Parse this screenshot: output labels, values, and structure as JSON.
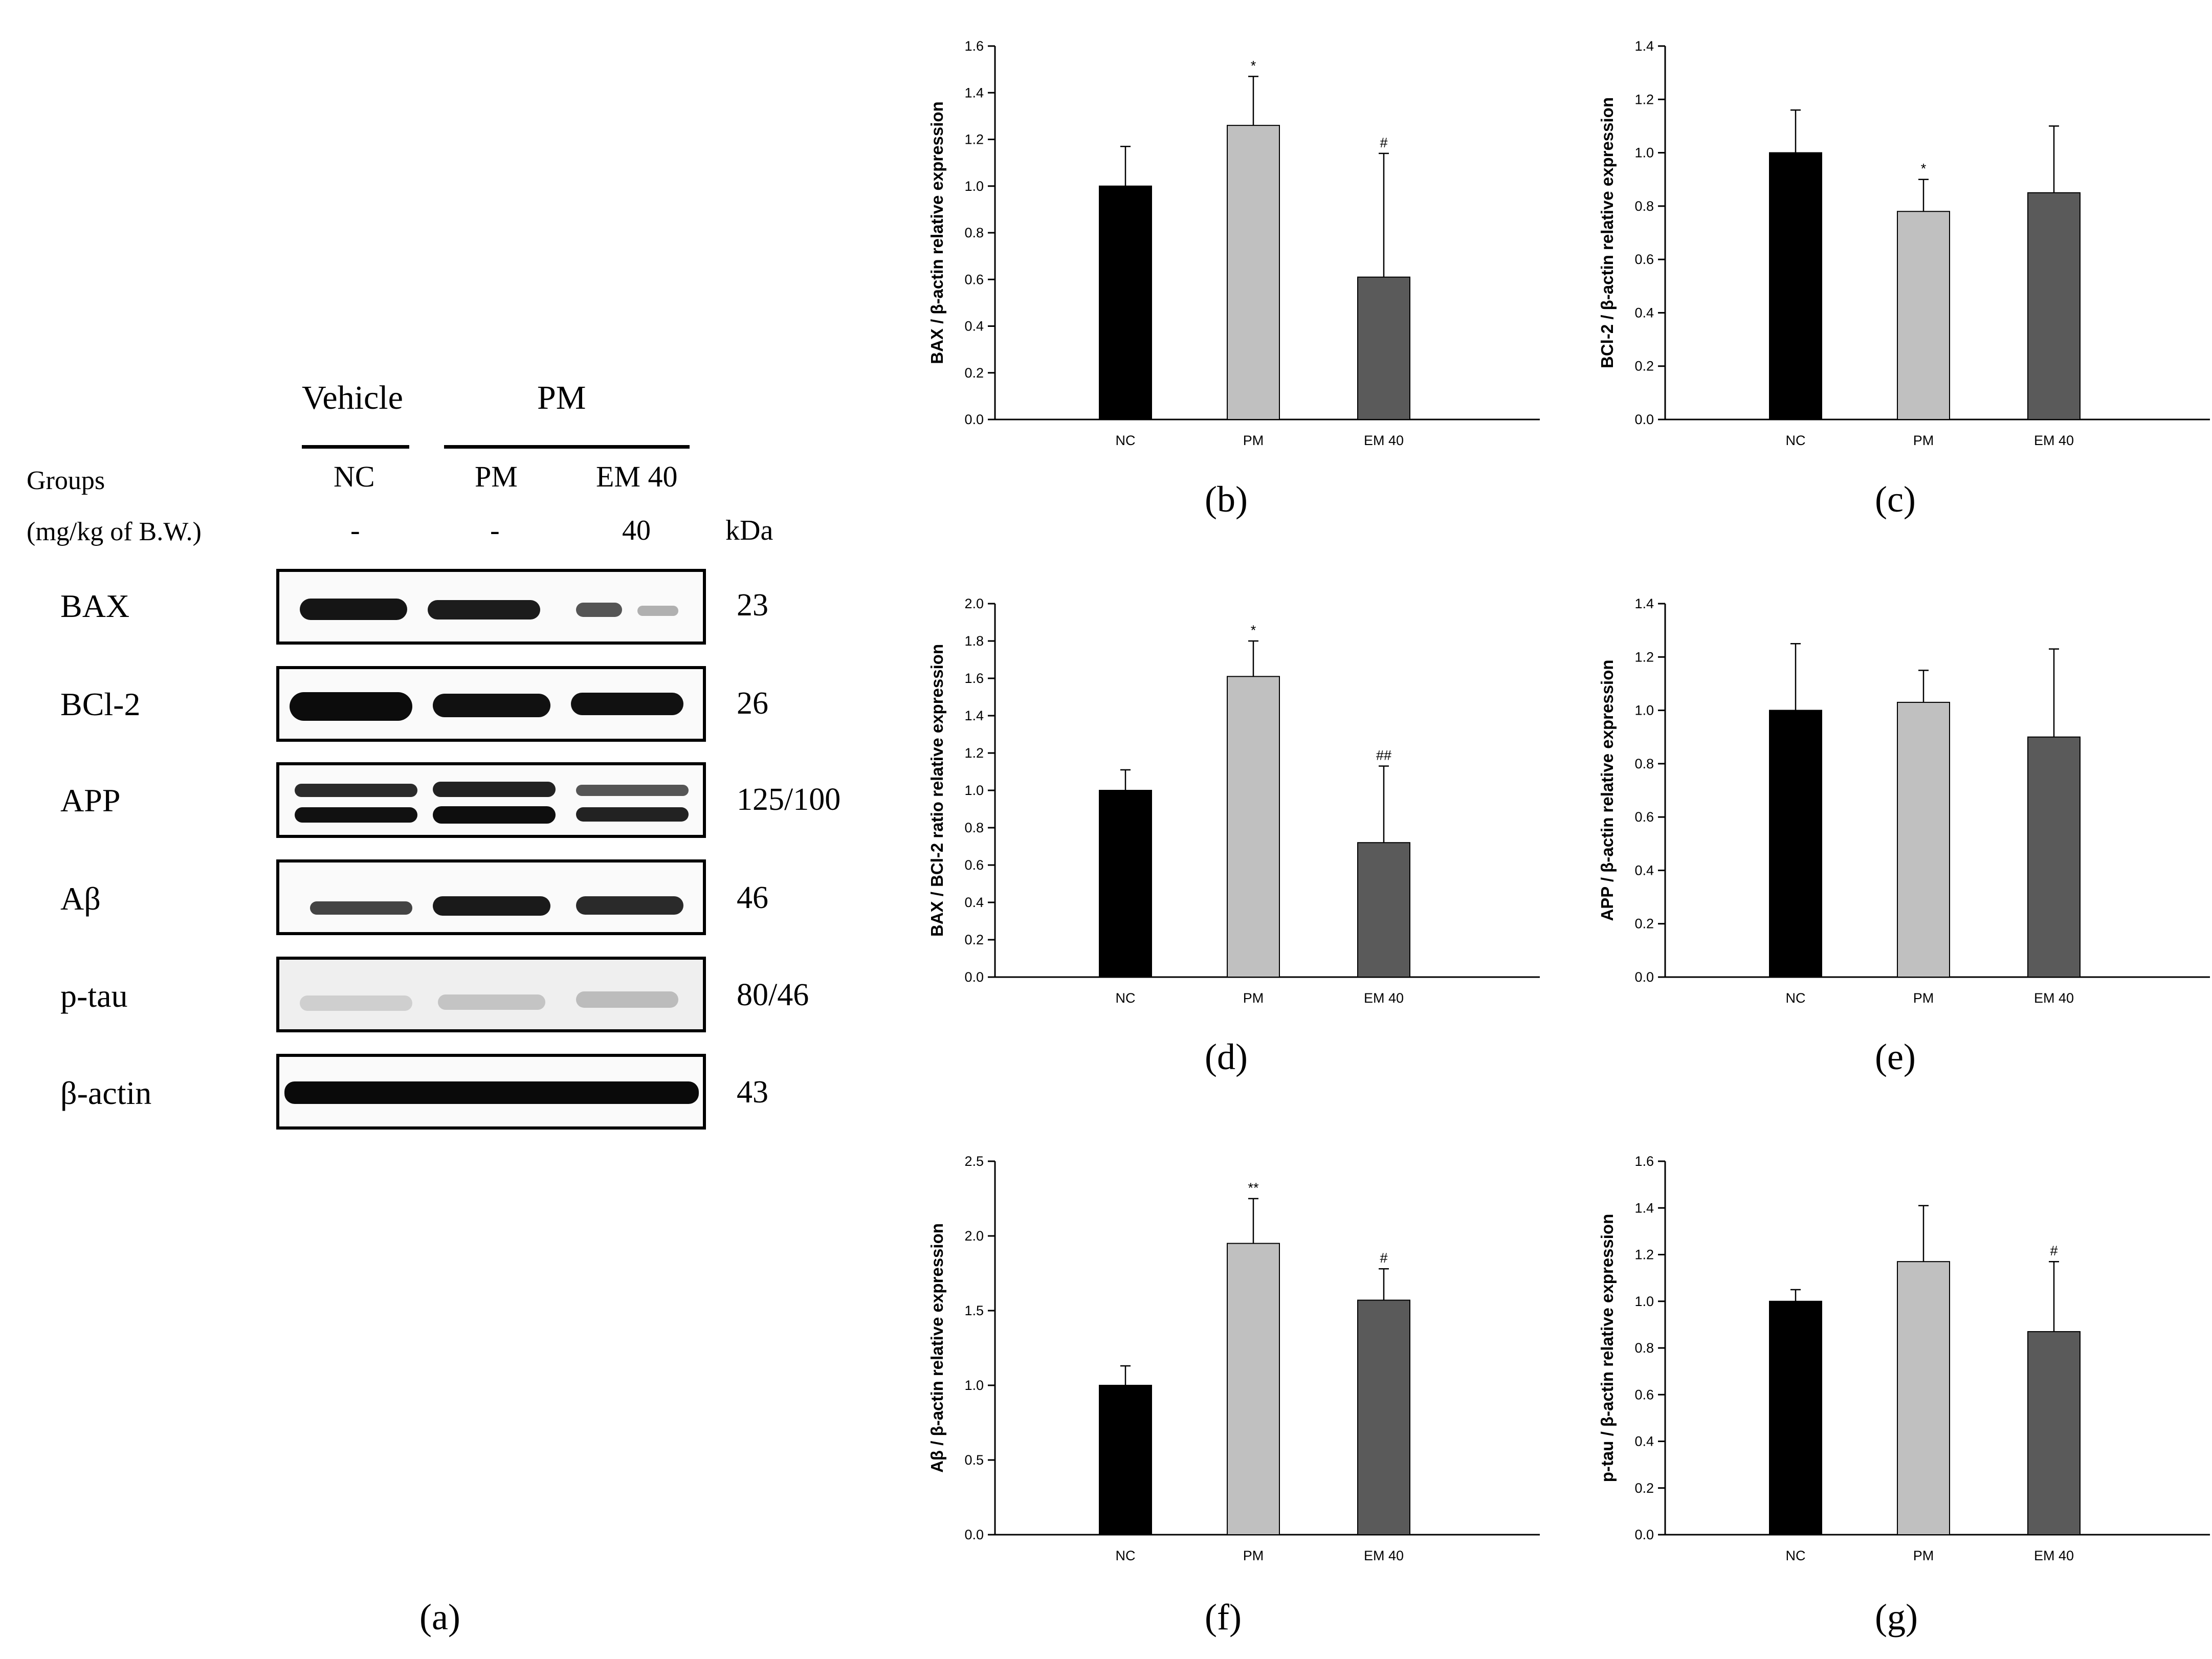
{
  "western_blot": {
    "header": {
      "vehicle": "Vehicle",
      "pm": "PM"
    },
    "groups_label": "Groups",
    "dose_label": "(mg/kg of B.W.)",
    "kda_label": "kDa",
    "lanes": [
      {
        "name": "NC",
        "dose": "-"
      },
      {
        "name": "PM",
        "dose": "-"
      },
      {
        "name": "EM 40",
        "dose": "40"
      }
    ],
    "rows": [
      {
        "protein": "BAX",
        "kda": "23"
      },
      {
        "protein": "BCl-2",
        "kda": "26"
      },
      {
        "protein": "APP",
        "kda": "125/100"
      },
      {
        "protein": "Aβ",
        "kda": "46"
      },
      {
        "protein": "p-tau",
        "kda": "80/46"
      },
      {
        "protein": "β-actin",
        "kda": "43"
      }
    ],
    "panel_label": "(a)"
  },
  "colors": {
    "NC": "#000000",
    "PM": "#c0c0c0",
    "EM 40": "#5a5a5a"
  },
  "chart_data": [
    {
      "id": "b",
      "panel_label": "(b)",
      "type": "bar",
      "categories": [
        "NC",
        "PM",
        "EM 40"
      ],
      "values": [
        1.0,
        1.26,
        0.61
      ],
      "errors": [
        0.17,
        0.21,
        0.53
      ],
      "annotations": [
        "",
        "*",
        "#"
      ],
      "ylabel": "BAX / β-actin relative expression",
      "ylim": [
        0,
        1.6
      ],
      "yticks": [
        "0.0",
        "0.2",
        "0.4",
        "0.6",
        "0.8",
        "1.0",
        "1.2",
        "1.4",
        "1.6"
      ]
    },
    {
      "id": "c",
      "panel_label": "(c)",
      "type": "bar",
      "categories": [
        "NC",
        "PM",
        "EM 40"
      ],
      "values": [
        1.0,
        0.78,
        0.85
      ],
      "errors": [
        0.16,
        0.12,
        0.25
      ],
      "annotations": [
        "",
        "*",
        ""
      ],
      "ylabel": "BCl-2 / β-actin relative expression",
      "ylim": [
        0,
        1.4
      ],
      "yticks": [
        "0.0",
        "0.2",
        "0.4",
        "0.6",
        "0.8",
        "1.0",
        "1.2",
        "1.4"
      ]
    },
    {
      "id": "d",
      "panel_label": "(d)",
      "type": "bar",
      "categories": [
        "NC",
        "PM",
        "EM 40"
      ],
      "values": [
        1.0,
        1.61,
        0.72
      ],
      "errors": [
        0.11,
        0.19,
        0.41
      ],
      "annotations": [
        "",
        "*",
        "##"
      ],
      "ylabel": "BAX / BCl-2 ratio relative expression",
      "ylim": [
        0,
        2.0
      ],
      "yticks": [
        "0.0",
        "0.2",
        "0.4",
        "0.6",
        "0.8",
        "1.0",
        "1.2",
        "1.4",
        "1.6",
        "1.8",
        "2.0"
      ]
    },
    {
      "id": "e",
      "panel_label": "(e)",
      "type": "bar",
      "categories": [
        "NC",
        "PM",
        "EM 40"
      ],
      "values": [
        1.0,
        1.03,
        0.9
      ],
      "errors": [
        0.25,
        0.12,
        0.33
      ],
      "annotations": [
        "",
        "",
        ""
      ],
      "ylabel": "APP / β-actin relative expression",
      "ylim": [
        0,
        1.4
      ],
      "yticks": [
        "0.0",
        "0.2",
        "0.4",
        "0.6",
        "0.8",
        "1.0",
        "1.2",
        "1.4"
      ]
    },
    {
      "id": "f",
      "panel_label": "(f)",
      "type": "bar",
      "categories": [
        "NC",
        "PM",
        "EM 40"
      ],
      "values": [
        1.0,
        1.95,
        1.57
      ],
      "errors": [
        0.13,
        0.3,
        0.21
      ],
      "annotations": [
        "",
        "**",
        "#"
      ],
      "ylabel": "Aβ / β-actin relative expression",
      "ylim": [
        0,
        2.5
      ],
      "yticks": [
        "0.0",
        "0.5",
        "1.0",
        "1.5",
        "2.0",
        "2.5"
      ]
    },
    {
      "id": "g",
      "panel_label": "(g)",
      "type": "bar",
      "categories": [
        "NC",
        "PM",
        "EM 40"
      ],
      "values": [
        1.0,
        1.17,
        0.87
      ],
      "errors": [
        0.05,
        0.24,
        0.3
      ],
      "annotations": [
        "",
        "",
        "#"
      ],
      "ylabel": "p-tau / β-actin relative expression",
      "ylim": [
        0,
        1.6
      ],
      "yticks": [
        "0.0",
        "0.2",
        "0.4",
        "0.6",
        "0.8",
        "1.0",
        "1.2",
        "1.4",
        "1.6"
      ]
    }
  ]
}
